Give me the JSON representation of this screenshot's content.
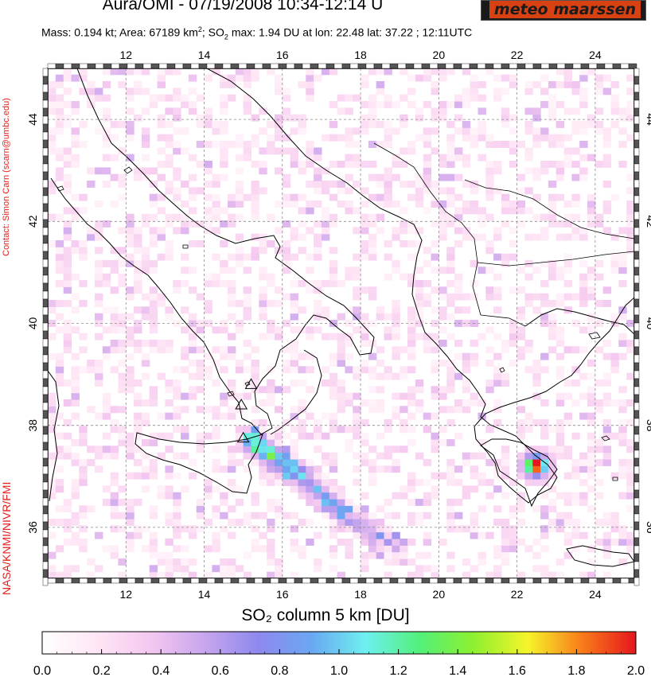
{
  "header": {
    "title": "Aura/OMI - 07/19/2008 10:34-12:14 U",
    "logo_text": "meteo maarssen",
    "mass_prefix": "Mass: 0.194 kt; Area: 67189 km",
    "mass_sup": "2",
    "so2_prefix": "; SO",
    "so2_sub": "2",
    "so2_rest": " max: 1.94 DU at lon: 22.48 lat: 37.22 ; 12:11UTC"
  },
  "side": {
    "contact": "Contact: Simon Carn (scarn@umbc.edu)",
    "credit": "NASA/KNMI/NIVR/FMI"
  },
  "map": {
    "lon_range": [
      10,
      25
    ],
    "lat_range": [
      35,
      45
    ],
    "lon_ticks": [
      "12",
      "14",
      "16",
      "18",
      "20",
      "22",
      "24"
    ],
    "lat_ticks": [
      "36",
      "38",
      "40",
      "42",
      "44"
    ],
    "volcanoes": [
      {
        "name": "Etna",
        "lon": 15.0,
        "lat": 37.75
      },
      {
        "name": "Vulcano",
        "lon": 14.95,
        "lat": 38.4
      },
      {
        "name": "Stromboli",
        "lon": 15.2,
        "lat": 38.8
      }
    ],
    "plume_axis": [
      [
        15.2,
        37.7
      ],
      [
        16.5,
        37.0
      ],
      [
        17.7,
        36.2
      ],
      [
        19.0,
        35.6
      ]
    ],
    "max_point": {
      "lon": 22.48,
      "lat": 37.22,
      "value": 1.94
    }
  },
  "colorbar": {
    "label": "SO₂ column 5 km [DU]",
    "ticks": [
      "0.0",
      "0.2",
      "0.4",
      "0.6",
      "0.8",
      "1.0",
      "1.2",
      "1.4",
      "1.6",
      "1.8",
      "2.0"
    ],
    "colors": [
      "#ffffff",
      "#ffe6f5",
      "#f4c8f0",
      "#c8a6ee",
      "#8e88ee",
      "#6aa8f2",
      "#6ef0f0",
      "#52f07a",
      "#8ef030",
      "#f6f42a",
      "#f87c1a",
      "#e6161e"
    ]
  }
}
